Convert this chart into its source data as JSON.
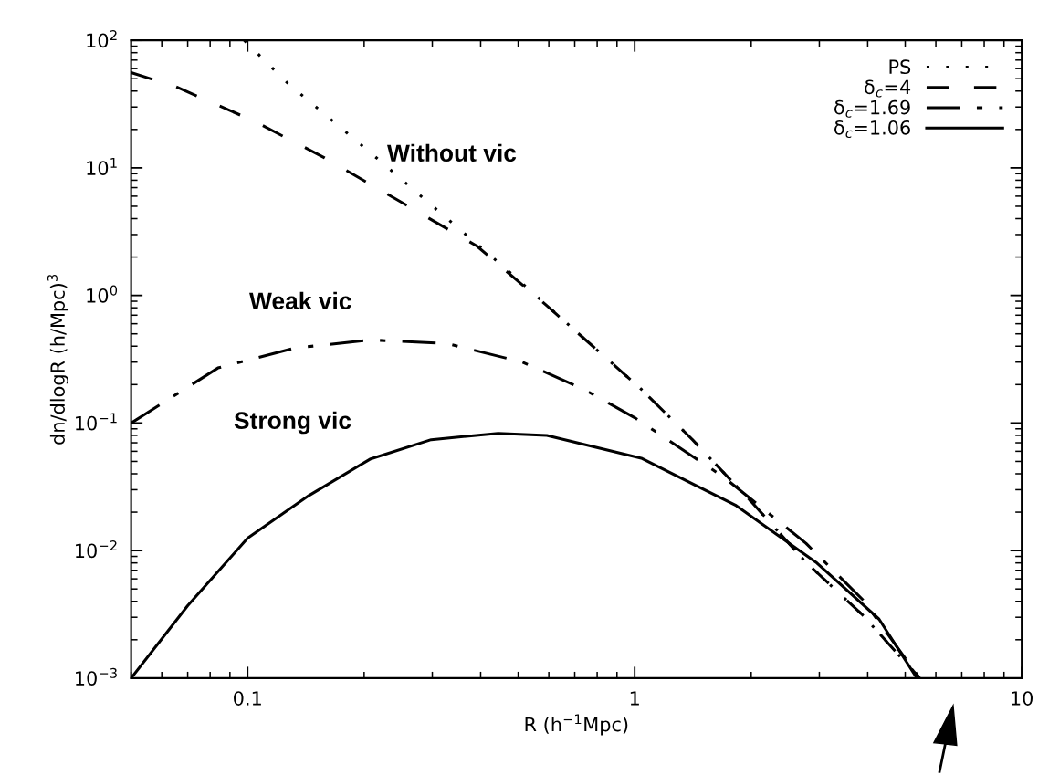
{
  "chart_data": {
    "type": "line",
    "xlabel": "R (h$^{−1}$Mpc)",
    "ylabel": "dn/dlogR (h/Mpc)$^{3}$",
    "log": "xy",
    "grid": false,
    "legend": "top right",
    "xlim": [
      0.05,
      10
    ],
    "xticks": [
      0.1,
      1,
      10
    ],
    "ylim": [
      0.001,
      100
    ],
    "yticks": [
      {
        "value": 0.001,
        "label": "10$^{−3}$"
      },
      {
        "value": 0.01,
        "label": "10$^{−2}$"
      },
      {
        "value": 0.1,
        "label": "10$^{−1}$"
      },
      {
        "value": 1,
        "label": "10$^{0}$"
      },
      {
        "value": 10,
        "label": "10$^{1}$"
      },
      {
        "value": 100,
        "label": "10$^{2}$"
      }
    ],
    "series": [
      {
        "name": "PS",
        "color": "#000000",
        "line_style": "dotted",
        "x": [
          0.098,
          0.127,
          0.17,
          0.225,
          0.321,
          0.46,
          0.698,
          1.04,
          1.41,
          2.01,
          2.77,
          3.89,
          5.45
        ],
        "values": [
          100,
          46,
          21.9,
          10.7,
          4.22,
          1.66,
          0.537,
          0.184,
          0.074,
          0.0238,
          0.0081,
          0.0031,
          0.001
        ]
      },
      {
        "name": "δ$_{c}$=4",
        "color": "#000000",
        "line_style": "dashed",
        "x": [
          0.05,
          0.065,
          0.104,
          0.158,
          0.249,
          0.391,
          0.593,
          0.772,
          1.04,
          1.41,
          2.01,
          2.77,
          3.89,
          5.45
        ],
        "values": [
          55.8,
          43.5,
          23.2,
          12.0,
          5.4,
          2.44,
          0.83,
          0.41,
          0.184,
          0.074,
          0.0238,
          0.0081,
          0.0031,
          0.001
        ]
      },
      {
        "name": "δ$_{c}$=1.69",
        "color": "#000000",
        "line_style": "dashdot",
        "x": [
          0.05,
          0.0838,
          0.132,
          0.207,
          0.327,
          0.513,
          0.738,
          1.0,
          1.7,
          2.77,
          3.89,
          5.45
        ],
        "values": [
          0.1,
          0.27,
          0.386,
          0.448,
          0.42,
          0.3,
          0.184,
          0.11,
          0.0376,
          0.0114,
          0.0041,
          0.001
        ]
      },
      {
        "name": "δ$_{c}$=1.06",
        "color": "#000000",
        "line_style": "solid",
        "x": [
          0.05,
          0.07,
          0.1,
          0.144,
          0.207,
          0.298,
          0.444,
          0.593,
          1.04,
          1.83,
          2.94,
          4.28,
          5.36
        ],
        "values": [
          0.001,
          0.0037,
          0.0125,
          0.027,
          0.052,
          0.074,
          0.083,
          0.08,
          0.053,
          0.0225,
          0.0081,
          0.0029,
          0.001
        ]
      }
    ],
    "annotations": [
      "Without vic",
      "Weak vic",
      "Strong vic"
    ]
  }
}
